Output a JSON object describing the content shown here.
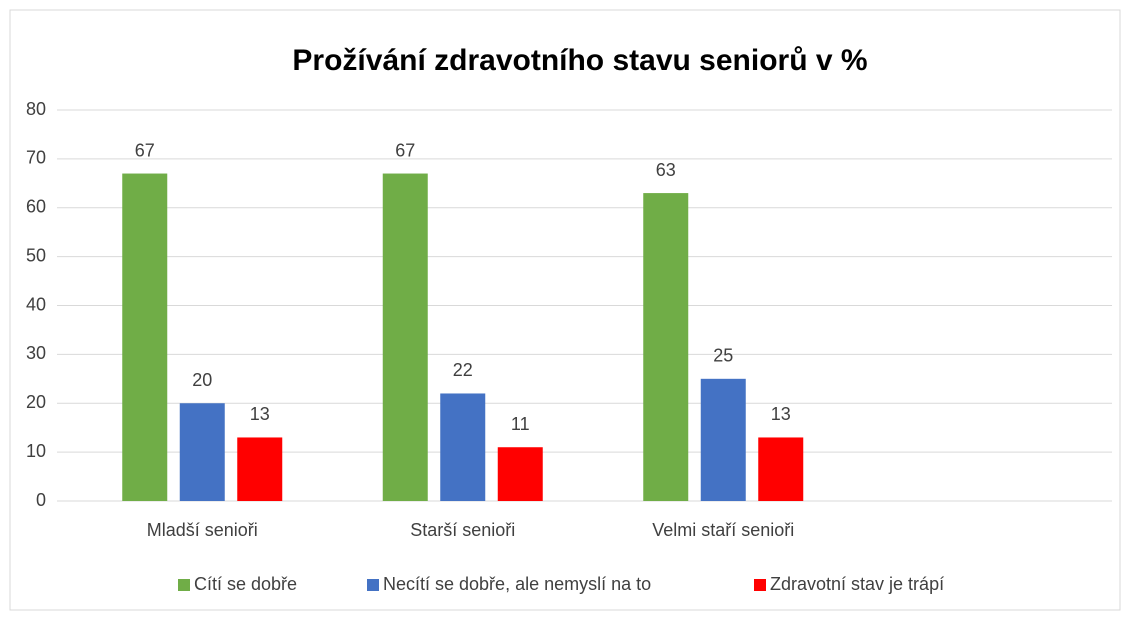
{
  "chart_data": {
    "type": "bar",
    "title": "Prožívání zdravotního stavu seniorů v %",
    "categories": [
      "Mladší senioři",
      "Starší senioři",
      "Velmi staří senioři",
      null
    ],
    "series": [
      {
        "name": "Cítí se dobře",
        "color": "#70ad47",
        "values": [
          67,
          67,
          63,
          null
        ]
      },
      {
        "name": "Necítí se dobře, ale nemyslí na to",
        "color": "#4472c4",
        "values": [
          20,
          22,
          25,
          null
        ]
      },
      {
        "name": "Zdravotní stav je trápí",
        "color": "#ff0000",
        "values": [
          13,
          11,
          13,
          null
        ]
      }
    ],
    "ylim": [
      0,
      80
    ],
    "yticks": [
      0,
      10,
      20,
      30,
      40,
      50,
      60,
      70,
      80
    ],
    "grid": true,
    "legend": "bottom"
  }
}
